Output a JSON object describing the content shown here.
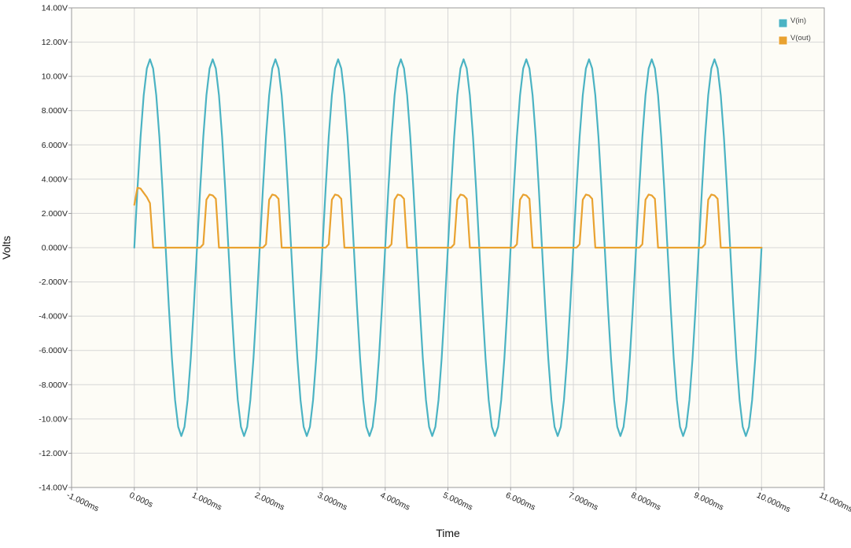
{
  "chart_data": {
    "type": "line",
    "xlabel": "Time",
    "ylabel": "Volts",
    "xlim": [
      -1.0,
      11.0
    ],
    "ylim": [
      -14.0,
      14.0
    ],
    "x_ticks": [
      {
        "value": -1,
        "label": "-1.000ms"
      },
      {
        "value": 0,
        "label": "0.000s"
      },
      {
        "value": 1,
        "label": "1.000ms"
      },
      {
        "value": 2,
        "label": "2.000ms"
      },
      {
        "value": 3,
        "label": "3.000ms"
      },
      {
        "value": 4,
        "label": "4.000ms"
      },
      {
        "value": 5,
        "label": "5.000ms"
      },
      {
        "value": 6,
        "label": "6.000ms"
      },
      {
        "value": 7,
        "label": "7.000ms"
      },
      {
        "value": 8,
        "label": "8.000ms"
      },
      {
        "value": 9,
        "label": "9.000ms"
      },
      {
        "value": 10,
        "label": "10.000ms"
      },
      {
        "value": 11,
        "label": "11.000ms"
      }
    ],
    "y_ticks": [
      {
        "value": 14,
        "label": "14.00V"
      },
      {
        "value": 12,
        "label": "12.00V"
      },
      {
        "value": 10,
        "label": "10.00V"
      },
      {
        "value": 8,
        "label": "8.000V"
      },
      {
        "value": 6,
        "label": "6.000V"
      },
      {
        "value": 4,
        "label": "4.000V"
      },
      {
        "value": 2,
        "label": "2.000V"
      },
      {
        "value": 0,
        "label": "0.000V"
      },
      {
        "value": -2,
        "label": "-2.000V"
      },
      {
        "value": -4,
        "label": "-4.000V"
      },
      {
        "value": -6,
        "label": "-6.000V"
      },
      {
        "value": -8,
        "label": "-8.000V"
      },
      {
        "value": -10,
        "label": "-10.00V"
      },
      {
        "value": -12,
        "label": "-12.00V"
      },
      {
        "value": -14,
        "label": "-14.00V"
      }
    ],
    "grid": true,
    "legend": "top-right",
    "series": [
      {
        "name": "V(in)",
        "color": "#4bb3c3",
        "x": [
          0,
          0.05,
          0.1,
          0.15,
          0.2,
          0.25,
          0.3,
          0.35,
          0.4,
          0.45,
          0.5,
          0.55,
          0.6,
          0.65,
          0.7,
          0.75,
          0.8,
          0.85,
          0.9,
          0.95,
          1.0,
          1.05,
          1.1,
          1.15,
          1.2,
          1.25,
          1.3,
          1.35,
          1.4,
          1.45,
          1.5,
          1.55,
          1.6,
          1.65,
          1.7,
          1.75,
          1.8,
          1.85,
          1.9,
          1.95,
          2.0,
          2.05,
          2.1,
          2.15,
          2.2,
          2.25,
          2.3,
          2.35,
          2.4,
          2.45,
          2.5,
          2.55,
          2.6,
          2.65,
          2.7,
          2.75,
          2.8,
          2.85,
          2.9,
          2.95,
          3.0,
          3.05,
          3.1,
          3.15,
          3.2,
          3.25,
          3.3,
          3.35,
          3.4,
          3.45,
          3.5,
          3.55,
          3.6,
          3.65,
          3.7,
          3.75,
          3.8,
          3.85,
          3.9,
          3.95,
          4.0,
          4.05,
          4.1,
          4.15,
          4.2,
          4.25,
          4.3,
          4.35,
          4.4,
          4.45,
          4.5,
          4.55,
          4.6,
          4.65,
          4.7,
          4.75,
          4.8,
          4.85,
          4.9,
          4.95,
          5.0,
          5.05,
          5.1,
          5.15,
          5.2,
          5.25,
          5.3,
          5.35,
          5.4,
          5.45,
          5.5,
          5.55,
          5.6,
          5.65,
          5.7,
          5.75,
          5.8,
          5.85,
          5.9,
          5.95,
          6.0,
          6.05,
          6.1,
          6.15,
          6.2,
          6.25,
          6.3,
          6.35,
          6.4,
          6.45,
          6.5,
          6.55,
          6.6,
          6.65,
          6.7,
          6.75,
          6.8,
          6.85,
          6.9,
          6.95,
          7.0,
          7.05,
          7.1,
          7.15,
          7.2,
          7.25,
          7.3,
          7.35,
          7.4,
          7.45,
          7.5,
          7.55,
          7.6,
          7.65,
          7.7,
          7.75,
          7.8,
          7.85,
          7.9,
          7.95,
          8.0,
          8.05,
          8.1,
          8.15,
          8.2,
          8.25,
          8.3,
          8.35,
          8.4,
          8.45,
          8.5,
          8.55,
          8.6,
          8.65,
          8.7,
          8.75,
          8.8,
          8.85,
          8.9,
          8.95,
          9.0,
          9.05,
          9.1,
          9.15,
          9.2,
          9.25,
          9.3,
          9.35,
          9.4,
          9.45,
          9.5,
          9.55,
          9.6,
          9.65,
          9.7,
          9.75,
          9.8,
          9.85,
          9.9,
          9.95,
          10.0
        ],
        "y": [
          0,
          3.4,
          6.47,
          8.9,
          10.46,
          11.0,
          10.46,
          8.9,
          6.47,
          3.4,
          0,
          -3.4,
          -6.47,
          -8.9,
          -10.46,
          -11.0,
          -10.46,
          -8.9,
          -6.47,
          -3.4,
          0,
          3.4,
          6.47,
          8.9,
          10.46,
          11.0,
          10.46,
          8.9,
          6.47,
          3.4,
          0,
          -3.4,
          -6.47,
          -8.9,
          -10.46,
          -11.0,
          -10.46,
          -8.9,
          -6.47,
          -3.4,
          0,
          3.4,
          6.47,
          8.9,
          10.46,
          11.0,
          10.46,
          8.9,
          6.47,
          3.4,
          0,
          -3.4,
          -6.47,
          -8.9,
          -10.46,
          -11.0,
          -10.46,
          -8.9,
          -6.47,
          -3.4,
          0,
          3.4,
          6.47,
          8.9,
          10.46,
          11.0,
          10.46,
          8.9,
          6.47,
          3.4,
          0,
          -3.4,
          -6.47,
          -8.9,
          -10.46,
          -11.0,
          -10.46,
          -8.9,
          -6.47,
          -3.4,
          0,
          3.4,
          6.47,
          8.9,
          10.46,
          11.0,
          10.46,
          8.9,
          6.47,
          3.4,
          0,
          -3.4,
          -6.47,
          -8.9,
          -10.46,
          -11.0,
          -10.46,
          -8.9,
          -6.47,
          -3.4,
          0,
          3.4,
          6.47,
          8.9,
          10.46,
          11.0,
          10.46,
          8.9,
          6.47,
          3.4,
          0,
          -3.4,
          -6.47,
          -8.9,
          -10.46,
          -11.0,
          -10.46,
          -8.9,
          -6.47,
          -3.4,
          0,
          3.4,
          6.47,
          8.9,
          10.46,
          11.0,
          10.46,
          8.9,
          6.47,
          3.4,
          0,
          -3.4,
          -6.47,
          -8.9,
          -10.46,
          -11.0,
          -10.46,
          -8.9,
          -6.47,
          -3.4,
          0,
          3.4,
          6.47,
          8.9,
          10.46,
          11.0,
          10.46,
          8.9,
          6.47,
          3.4,
          0,
          -3.4,
          -6.47,
          -8.9,
          -10.46,
          -11.0,
          -10.46,
          -8.9,
          -6.47,
          -3.4,
          0,
          3.4,
          6.47,
          8.9,
          10.46,
          11.0,
          10.46,
          8.9,
          6.47,
          3.4,
          0,
          -3.4,
          -6.47,
          -8.9,
          -10.46,
          -11.0,
          -10.46,
          -8.9,
          -6.47,
          -3.4,
          0,
          3.4,
          6.47,
          8.9,
          10.46,
          11.0,
          10.46,
          8.9,
          6.47,
          3.4,
          0,
          -3.4,
          -6.47,
          -8.9,
          -10.46,
          -11.0,
          -10.46,
          -8.9,
          -6.47,
          -3.4,
          0
        ]
      },
      {
        "name": "V(out)",
        "color": "#e9a230",
        "x": [
          0,
          0.05,
          0.1,
          0.15,
          0.2,
          0.25,
          0.3,
          0.35,
          1.0,
          1.05,
          1.1,
          1.15,
          1.2,
          1.25,
          1.3,
          1.35,
          2.0,
          2.05,
          2.1,
          2.15,
          2.2,
          2.25,
          2.3,
          2.35,
          3.0,
          3.05,
          3.1,
          3.15,
          3.2,
          3.25,
          3.3,
          3.35,
          4.0,
          4.05,
          4.1,
          4.15,
          4.2,
          4.25,
          4.3,
          4.35,
          5.0,
          5.05,
          5.1,
          5.15,
          5.2,
          5.25,
          5.3,
          5.35,
          6.0,
          6.05,
          6.1,
          6.15,
          6.2,
          6.25,
          6.3,
          6.35,
          7.0,
          7.05,
          7.1,
          7.15,
          7.2,
          7.25,
          7.3,
          7.35,
          8.0,
          8.05,
          8.1,
          8.15,
          8.2,
          8.25,
          8.3,
          8.35,
          9.0,
          9.05,
          9.1,
          9.15,
          9.2,
          9.25,
          9.3,
          9.35,
          10.0
        ],
        "y": [
          2.5,
          3.5,
          3.45,
          3.2,
          2.95,
          2.6,
          0,
          0,
          0,
          0,
          0.2,
          2.8,
          3.1,
          3.05,
          2.85,
          0,
          0,
          0,
          0.2,
          2.8,
          3.1,
          3.05,
          2.85,
          0,
          0,
          0,
          0.2,
          2.8,
          3.1,
          3.05,
          2.85,
          0,
          0,
          0,
          0.2,
          2.8,
          3.1,
          3.05,
          2.85,
          0,
          0,
          0,
          0.2,
          2.8,
          3.1,
          3.05,
          2.85,
          0,
          0,
          0,
          0.2,
          2.8,
          3.1,
          3.05,
          2.85,
          0,
          0,
          0,
          0.2,
          2.8,
          3.1,
          3.05,
          2.85,
          0,
          0,
          0,
          0.2,
          2.8,
          3.1,
          3.05,
          2.85,
          0,
          0,
          0,
          0.2,
          2.8,
          3.1,
          3.05,
          2.85,
          0,
          0
        ]
      }
    ]
  },
  "colors": {
    "plot_background": "#fdfcf6",
    "grid": "#d6d6d6",
    "frame": "#9a9a9a"
  }
}
